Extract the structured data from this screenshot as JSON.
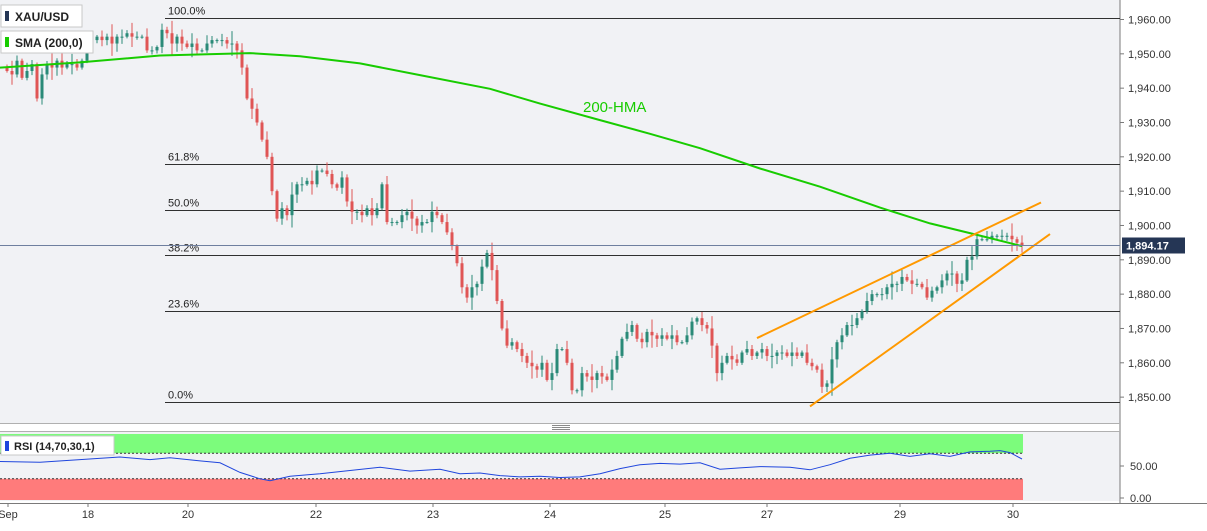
{
  "header": {
    "symbol": "XAU/USD",
    "indicator": "SMA (200,0)"
  },
  "colors": {
    "background": "#f1f2f5",
    "up_candle": "#2a8a78",
    "down_candle": "#e05555",
    "hma": "#18cc00",
    "channel": "#ff9900",
    "rsi_line": "#2046dd",
    "rsi_overbought_band": "#7cfc7c",
    "rsi_oversold_band": "#ff7b7b",
    "price_badge": "#253655"
  },
  "chart_data": [
    {
      "type": "candlestick",
      "x_tick_labels": [
        "Sep",
        "18",
        "20",
        "22",
        "23",
        "24",
        "25",
        "27",
        "29",
        "30"
      ],
      "ylim": [
        1845,
        1965
      ],
      "y_ticks": [
        1960,
        1950,
        1940,
        1930,
        1920,
        1910,
        1900,
        1890,
        1880,
        1870,
        1860,
        1850
      ],
      "y_tick_labels": [
        "1,960.00",
        "1,950.00",
        "1,940.00",
        "1,930.00",
        "1,920.00",
        "1,910.00",
        "1,900.00",
        "1,890.00",
        "1,880.00",
        "1,870.00",
        "1,860.00",
        "1,850.00"
      ],
      "last_price": 1894.17,
      "last_price_label": "1,894.17",
      "fibonacci_levels": [
        {
          "label": "100.0%",
          "price": 1960.5
        },
        {
          "label": "61.8%",
          "price": 1917.8
        },
        {
          "label": "50.0%",
          "price": 1904.6
        },
        {
          "label": "38.2%",
          "price": 1891.4
        },
        {
          "label": "23.6%",
          "price": 1875.1
        },
        {
          "label": "0.0%",
          "price": 1848.7
        }
      ],
      "hma_label": "200-HMA",
      "hma_series": [
        {
          "t": 0,
          "v": 1946.0
        },
        {
          "t": 80,
          "v": 1947.5
        },
        {
          "t": 160,
          "v": 1949.5
        },
        {
          "t": 250,
          "v": 1950.2
        },
        {
          "t": 300,
          "v": 1949.3
        },
        {
          "t": 360,
          "v": 1947.2
        },
        {
          "t": 420,
          "v": 1943.8
        },
        {
          "t": 490,
          "v": 1939.8
        },
        {
          "t": 540,
          "v": 1935.5
        },
        {
          "t": 600,
          "v": 1930.7
        },
        {
          "t": 650,
          "v": 1926.7
        },
        {
          "t": 700,
          "v": 1922.5
        },
        {
          "t": 760,
          "v": 1916.6
        },
        {
          "t": 820,
          "v": 1911.3
        },
        {
          "t": 880,
          "v": 1905.2
        },
        {
          "t": 930,
          "v": 1900.6
        },
        {
          "t": 975,
          "v": 1897.4
        },
        {
          "t": 1022,
          "v": 1894.0
        }
      ],
      "wedge_lines": [
        {
          "from": [
            757,
            1867.2
          ],
          "to": [
            1041,
            1906.7
          ]
        },
        {
          "from": [
            810,
            1847.3
          ],
          "to": [
            1050,
            1897.5
          ]
        }
      ],
      "price_path": [
        [
          0,
          1946
        ],
        [
          5,
          1945
        ],
        [
          10,
          1944
        ],
        [
          15,
          1948
        ],
        [
          20,
          1943
        ],
        [
          25,
          1945
        ],
        [
          30,
          1947
        ],
        [
          35,
          1937
        ],
        [
          40,
          1944
        ],
        [
          45,
          1947
        ],
        [
          50,
          1946
        ],
        [
          55,
          1948
        ],
        [
          60,
          1946
        ],
        [
          65,
          1947
        ],
        [
          70,
          1947
        ],
        [
          75,
          1946
        ],
        [
          80,
          1948
        ],
        [
          85,
          1952
        ],
        [
          90,
          1954
        ],
        [
          95,
          1955
        ],
        [
          100,
          1954
        ],
        [
          105,
          1955
        ],
        [
          110,
          1953
        ],
        [
          115,
          1955
        ],
        [
          120,
          1955
        ],
        [
          125,
          1956
        ],
        [
          130,
          1955
        ],
        [
          135,
          1955
        ],
        [
          140,
          1955
        ],
        [
          145,
          1951
        ],
        [
          150,
          1951
        ],
        [
          155,
          1952
        ],
        [
          160,
          1957
        ],
        [
          165,
          1956
        ],
        [
          170,
          1953
        ],
        [
          175,
          1955
        ],
        [
          180,
          1953
        ],
        [
          185,
          1952
        ],
        [
          190,
          1953
        ],
        [
          195,
          1951
        ],
        [
          200,
          1951
        ],
        [
          205,
          1953
        ],
        [
          210,
          1954
        ],
        [
          215,
          1954
        ],
        [
          220,
          1954
        ],
        [
          225,
          1953
        ],
        [
          230,
          1953
        ],
        [
          235,
          1951
        ],
        [
          240,
          1946
        ],
        [
          245,
          1937
        ],
        [
          250,
          1934
        ],
        [
          255,
          1930
        ],
        [
          260,
          1925
        ],
        [
          265,
          1920
        ],
        [
          270,
          1910
        ],
        [
          275,
          1902
        ],
        [
          280,
          1905
        ],
        [
          285,
          1903
        ],
        [
          290,
          1909
        ],
        [
          295,
          1912
        ],
        [
          300,
          1912
        ],
        [
          305,
          1913
        ],
        [
          310,
          1912
        ],
        [
          315,
          1916
        ],
        [
          320,
          1916
        ],
        [
          325,
          1915
        ],
        [
          330,
          1912
        ],
        [
          335,
          1911
        ],
        [
          340,
          1914
        ],
        [
          345,
          1907
        ],
        [
          350,
          1904
        ],
        [
          355,
          1904
        ],
        [
          360,
          1903
        ],
        [
          365,
          1905
        ],
        [
          370,
          1903
        ],
        [
          375,
          1905
        ],
        [
          380,
          1912
        ],
        [
          385,
          1901
        ],
        [
          390,
          1901
        ],
        [
          395,
          1901
        ],
        [
          400,
          1903
        ],
        [
          405,
          1904
        ],
        [
          410,
          1902
        ],
        [
          415,
          1900
        ],
        [
          420,
          1901
        ],
        [
          425,
          1901
        ],
        [
          430,
          1904
        ],
        [
          435,
          1903
        ],
        [
          440,
          1901
        ],
        [
          445,
          1898
        ],
        [
          450,
          1894
        ],
        [
          455,
          1889
        ],
        [
          460,
          1882
        ],
        [
          465,
          1879
        ],
        [
          470,
          1882
        ],
        [
          475,
          1883
        ],
        [
          480,
          1888
        ],
        [
          485,
          1892
        ],
        [
          490,
          1887
        ],
        [
          495,
          1878
        ],
        [
          500,
          1870
        ],
        [
          505,
          1865
        ],
        [
          510,
          1866
        ],
        [
          515,
          1864
        ],
        [
          520,
          1862
        ],
        [
          525,
          1860
        ],
        [
          530,
          1859
        ],
        [
          535,
          1858
        ],
        [
          540,
          1860
        ],
        [
          545,
          1855
        ],
        [
          550,
          1857
        ],
        [
          555,
          1864
        ],
        [
          560,
          1864
        ],
        [
          565,
          1860
        ],
        [
          570,
          1852
        ],
        [
          575,
          1852
        ],
        [
          580,
          1857
        ],
        [
          585,
          1856
        ],
        [
          590,
          1855
        ],
        [
          595,
          1857
        ],
        [
          600,
          1856
        ],
        [
          605,
          1855
        ],
        [
          610,
          1858
        ],
        [
          615,
          1862
        ],
        [
          620,
          1867
        ],
        [
          625,
          1869
        ],
        [
          630,
          1871
        ],
        [
          635,
          1867
        ],
        [
          640,
          1866
        ],
        [
          645,
          1869
        ],
        [
          650,
          1868
        ],
        [
          655,
          1867
        ],
        [
          660,
          1868
        ],
        [
          665,
          1867
        ],
        [
          670,
          1868
        ],
        [
          675,
          1866
        ],
        [
          680,
          1866
        ],
        [
          685,
          1868
        ],
        [
          690,
          1872
        ],
        [
          695,
          1873
        ],
        [
          700,
          1871
        ],
        [
          705,
          1870
        ],
        [
          710,
          1865
        ],
        [
          715,
          1857
        ],
        [
          720,
          1860
        ],
        [
          725,
          1862
        ],
        [
          730,
          1861
        ],
        [
          735,
          1860
        ],
        [
          740,
          1863
        ],
        [
          745,
          1864
        ],
        [
          750,
          1862
        ],
        [
          755,
          1863
        ],
        [
          760,
          1864
        ],
        [
          765,
          1862
        ],
        [
          770,
          1862
        ],
        [
          775,
          1863
        ],
        [
          780,
          1863
        ],
        [
          785,
          1862
        ],
        [
          790,
          1863
        ],
        [
          795,
          1862
        ],
        [
          800,
          1863
        ],
        [
          805,
          1860
        ],
        [
          810,
          1859
        ],
        [
          815,
          1858
        ],
        [
          820,
          1853
        ],
        [
          825,
          1854
        ],
        [
          830,
          1861
        ],
        [
          835,
          1866
        ],
        [
          840,
          1868
        ],
        [
          845,
          1871
        ],
        [
          850,
          1871
        ],
        [
          855,
          1873
        ],
        [
          860,
          1875
        ],
        [
          865,
          1878
        ],
        [
          870,
          1880
        ],
        [
          875,
          1880
        ],
        [
          880,
          1880
        ],
        [
          885,
          1882
        ],
        [
          890,
          1883
        ],
        [
          895,
          1883
        ],
        [
          900,
          1885
        ],
        [
          905,
          1884
        ],
        [
          910,
          1883
        ],
        [
          915,
          1883
        ],
        [
          920,
          1882
        ],
        [
          925,
          1879
        ],
        [
          930,
          1881
        ],
        [
          935,
          1882
        ],
        [
          940,
          1884
        ],
        [
          945,
          1886
        ],
        [
          950,
          1886
        ],
        [
          955,
          1883
        ],
        [
          960,
          1884
        ],
        [
          965,
          1890
        ],
        [
          970,
          1891
        ],
        [
          975,
          1896
        ],
        [
          980,
          1896
        ],
        [
          985,
          1896
        ],
        [
          990,
          1897
        ],
        [
          995,
          1897
        ],
        [
          1000,
          1897
        ],
        [
          1005,
          1897
        ],
        [
          1010,
          1896
        ],
        [
          1015,
          1895
        ],
        [
          1020,
          1894.2
        ]
      ]
    },
    {
      "type": "line",
      "title": "RSI (14,70,30,1)",
      "ylim": [
        0,
        100
      ],
      "y_ticks": [
        50,
        0
      ],
      "y_tick_labels": [
        "50.00",
        "0.00"
      ],
      "overbought": 70,
      "oversold": 30,
      "rsi_series": [
        [
          0,
          57
        ],
        [
          40,
          56
        ],
        [
          80,
          60
        ],
        [
          120,
          64
        ],
        [
          150,
          60
        ],
        [
          170,
          63
        ],
        [
          200,
          58
        ],
        [
          220,
          55
        ],
        [
          240,
          40
        ],
        [
          260,
          30
        ],
        [
          270,
          27
        ],
        [
          290,
          34
        ],
        [
          320,
          38
        ],
        [
          350,
          43
        ],
        [
          380,
          48
        ],
        [
          410,
          42
        ],
        [
          440,
          45
        ],
        [
          460,
          38
        ],
        [
          480,
          39
        ],
        [
          500,
          35
        ],
        [
          520,
          33
        ],
        [
          540,
          34
        ],
        [
          560,
          32
        ],
        [
          580,
          33
        ],
        [
          600,
          38
        ],
        [
          620,
          46
        ],
        [
          640,
          52
        ],
        [
          660,
          54
        ],
        [
          680,
          53
        ],
        [
          700,
          55
        ],
        [
          720,
          45
        ],
        [
          740,
          47
        ],
        [
          760,
          49
        ],
        [
          790,
          48
        ],
        [
          810,
          44
        ],
        [
          830,
          52
        ],
        [
          850,
          62
        ],
        [
          870,
          67
        ],
        [
          890,
          70
        ],
        [
          910,
          65
        ],
        [
          930,
          69
        ],
        [
          950,
          65
        ],
        [
          970,
          72
        ],
        [
          990,
          73
        ],
        [
          1000,
          74
        ],
        [
          1010,
          71
        ],
        [
          1022,
          61
        ]
      ]
    }
  ]
}
